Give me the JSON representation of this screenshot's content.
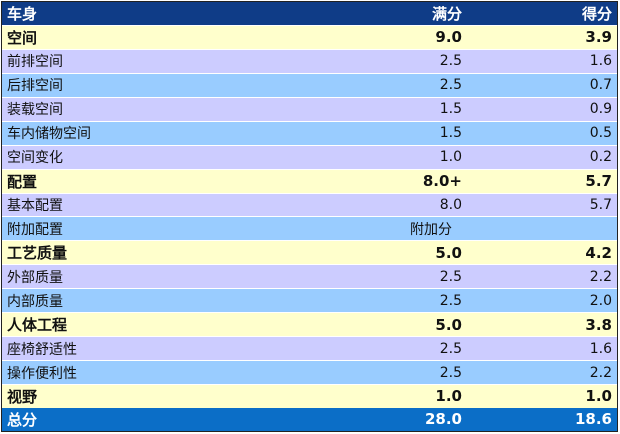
{
  "header": {
    "name": "车身",
    "full": "满分",
    "score": "得分"
  },
  "rows": [
    {
      "kind": "cat",
      "name": "空间",
      "full": "9.0",
      "score": "3.9"
    },
    {
      "kind": "alt-a",
      "name": "前排空间",
      "full": "2.5",
      "score": "1.6"
    },
    {
      "kind": "alt-b",
      "name": "后排空间",
      "full": "2.5",
      "score": "0.7"
    },
    {
      "kind": "alt-a",
      "name": "装载空间",
      "full": "1.5",
      "score": "0.9"
    },
    {
      "kind": "alt-b",
      "name": "车内储物空间",
      "full": "1.5",
      "score": "0.5"
    },
    {
      "kind": "alt-a",
      "name": "空间变化",
      "full": "1.0",
      "score": "0.2"
    },
    {
      "kind": "cat",
      "name": "配置",
      "full": "8.0+",
      "score": "5.7"
    },
    {
      "kind": "alt-a",
      "name": "基本配置",
      "full": "8.0",
      "score": "5.7"
    },
    {
      "kind": "alt-b",
      "name": "附加配置",
      "full": "附加分",
      "score": ""
    },
    {
      "kind": "cat",
      "name": "工艺质量",
      "full": "5.0",
      "score": "4.2"
    },
    {
      "kind": "alt-a",
      "name": "外部质量",
      "full": "2.5",
      "score": "2.2"
    },
    {
      "kind": "alt-b",
      "name": "内部质量",
      "full": "2.5",
      "score": "2.0"
    },
    {
      "kind": "cat",
      "name": "人体工程",
      "full": "5.0",
      "score": "3.8"
    },
    {
      "kind": "alt-a",
      "name": "座椅舒适性",
      "full": "2.5",
      "score": "1.6"
    },
    {
      "kind": "alt-b",
      "name": "操作便利性",
      "full": "2.5",
      "score": "2.2"
    },
    {
      "kind": "cat",
      "name": "视野",
      "full": "1.0",
      "score": "1.0"
    }
  ],
  "total": {
    "name": "总分",
    "full": "28.0",
    "score": "18.6"
  }
}
